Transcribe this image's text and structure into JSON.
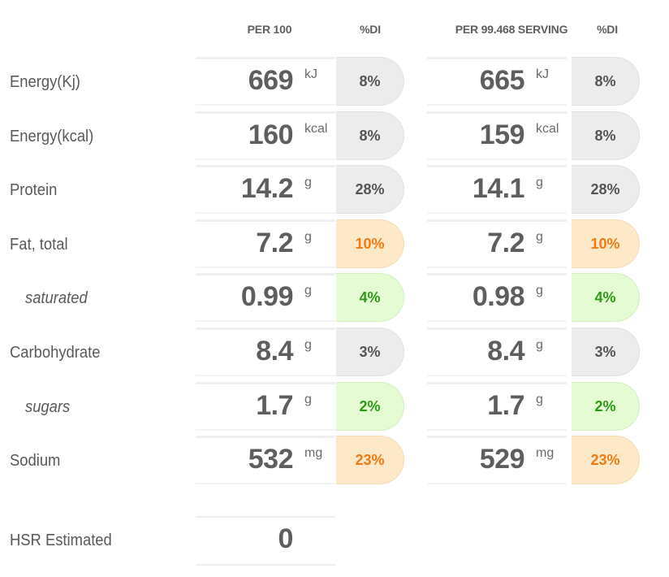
{
  "headers": {
    "per100": "PER 100",
    "di1": "%DI",
    "perServing": "PER 99.468 SERVING",
    "di2": "%DI"
  },
  "rows": [
    {
      "label": "Energy(Kj)",
      "sub": false,
      "v100": "669",
      "unit": "kJ",
      "di100": "8%",
      "vServ": "665",
      "diServ": "8%",
      "color": "grey"
    },
    {
      "label": "Energy(kcal)",
      "sub": false,
      "v100": "160",
      "unit": "kcal",
      "di100": "8%",
      "vServ": "159",
      "diServ": "8%",
      "color": "grey"
    },
    {
      "label": "Protein",
      "sub": false,
      "v100": "14.2",
      "unit": "g",
      "di100": "28%",
      "vServ": "14.1",
      "diServ": "28%",
      "color": "grey"
    },
    {
      "label": "Fat, total",
      "sub": false,
      "v100": "7.2",
      "unit": "g",
      "di100": "10%",
      "vServ": "7.2",
      "diServ": "10%",
      "color": "orange"
    },
    {
      "label": "saturated",
      "sub": true,
      "v100": "0.99",
      "unit": "g",
      "di100": "4%",
      "vServ": "0.98",
      "diServ": "4%",
      "color": "green"
    },
    {
      "label": "Carbohydrate",
      "sub": false,
      "v100": "8.4",
      "unit": "g",
      "di100": "3%",
      "vServ": "8.4",
      "diServ": "3%",
      "color": "grey"
    },
    {
      "label": "sugars",
      "sub": true,
      "v100": "1.7",
      "unit": "g",
      "di100": "2%",
      "vServ": "1.7",
      "diServ": "2%",
      "color": "green"
    },
    {
      "label": "Sodium",
      "sub": false,
      "v100": "532",
      "unit": "mg",
      "di100": "23%",
      "vServ": "529",
      "diServ": "23%",
      "color": "orange"
    }
  ],
  "hsr": {
    "label": "HSR Estimated",
    "value": "0"
  },
  "colors": {
    "grey": "#ececec",
    "orange": "#fde8c7",
    "orangeText": "#f07b12",
    "green": "#e4fbd3",
    "greenText": "#2d9b16"
  }
}
